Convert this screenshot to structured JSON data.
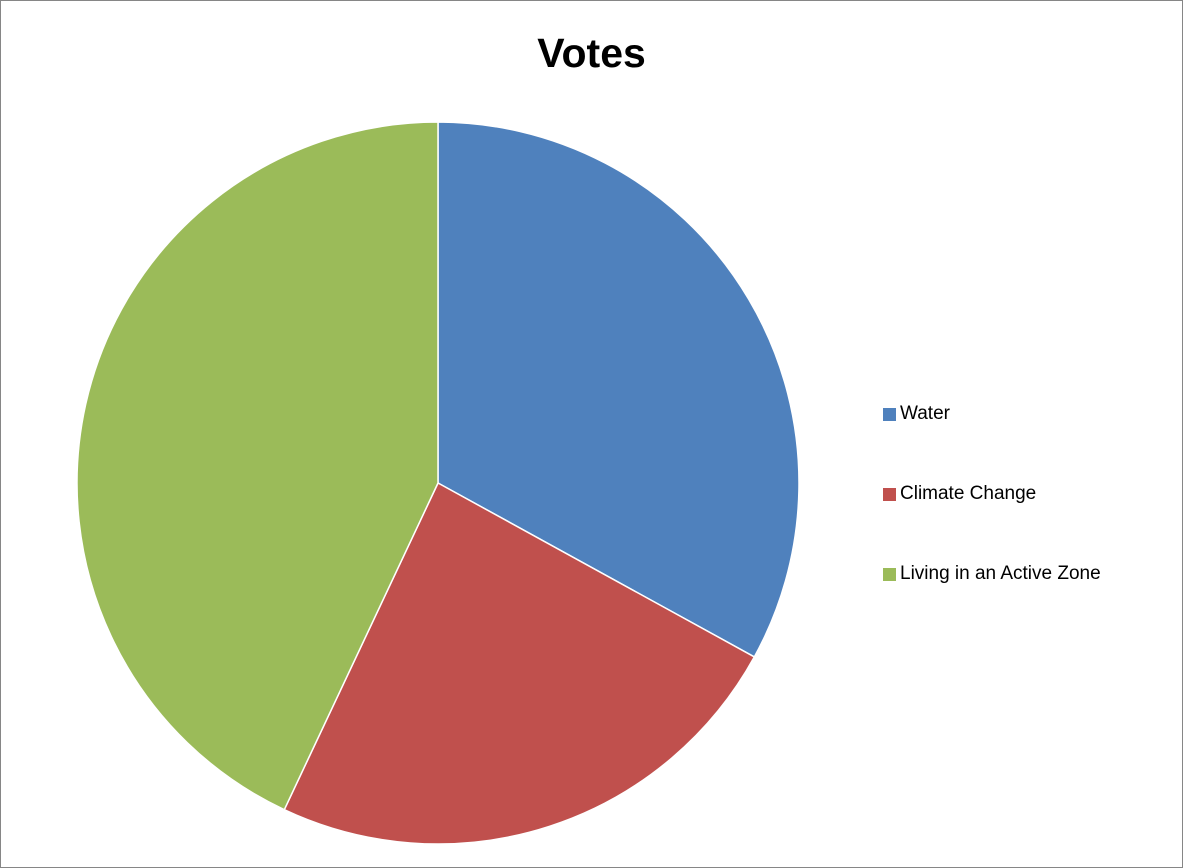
{
  "chart_data": {
    "type": "pie",
    "title": "Votes",
    "categories": [
      "Water",
      "Climate Change",
      "Living in an Active Zone"
    ],
    "values": [
      33,
      24,
      43
    ],
    "colors": [
      "#4F81BD",
      "#C0504D",
      "#9BBB59"
    ],
    "start_angle_deg": 0,
    "direction": "clockwise",
    "legend_position": "right",
    "grid": false
  }
}
